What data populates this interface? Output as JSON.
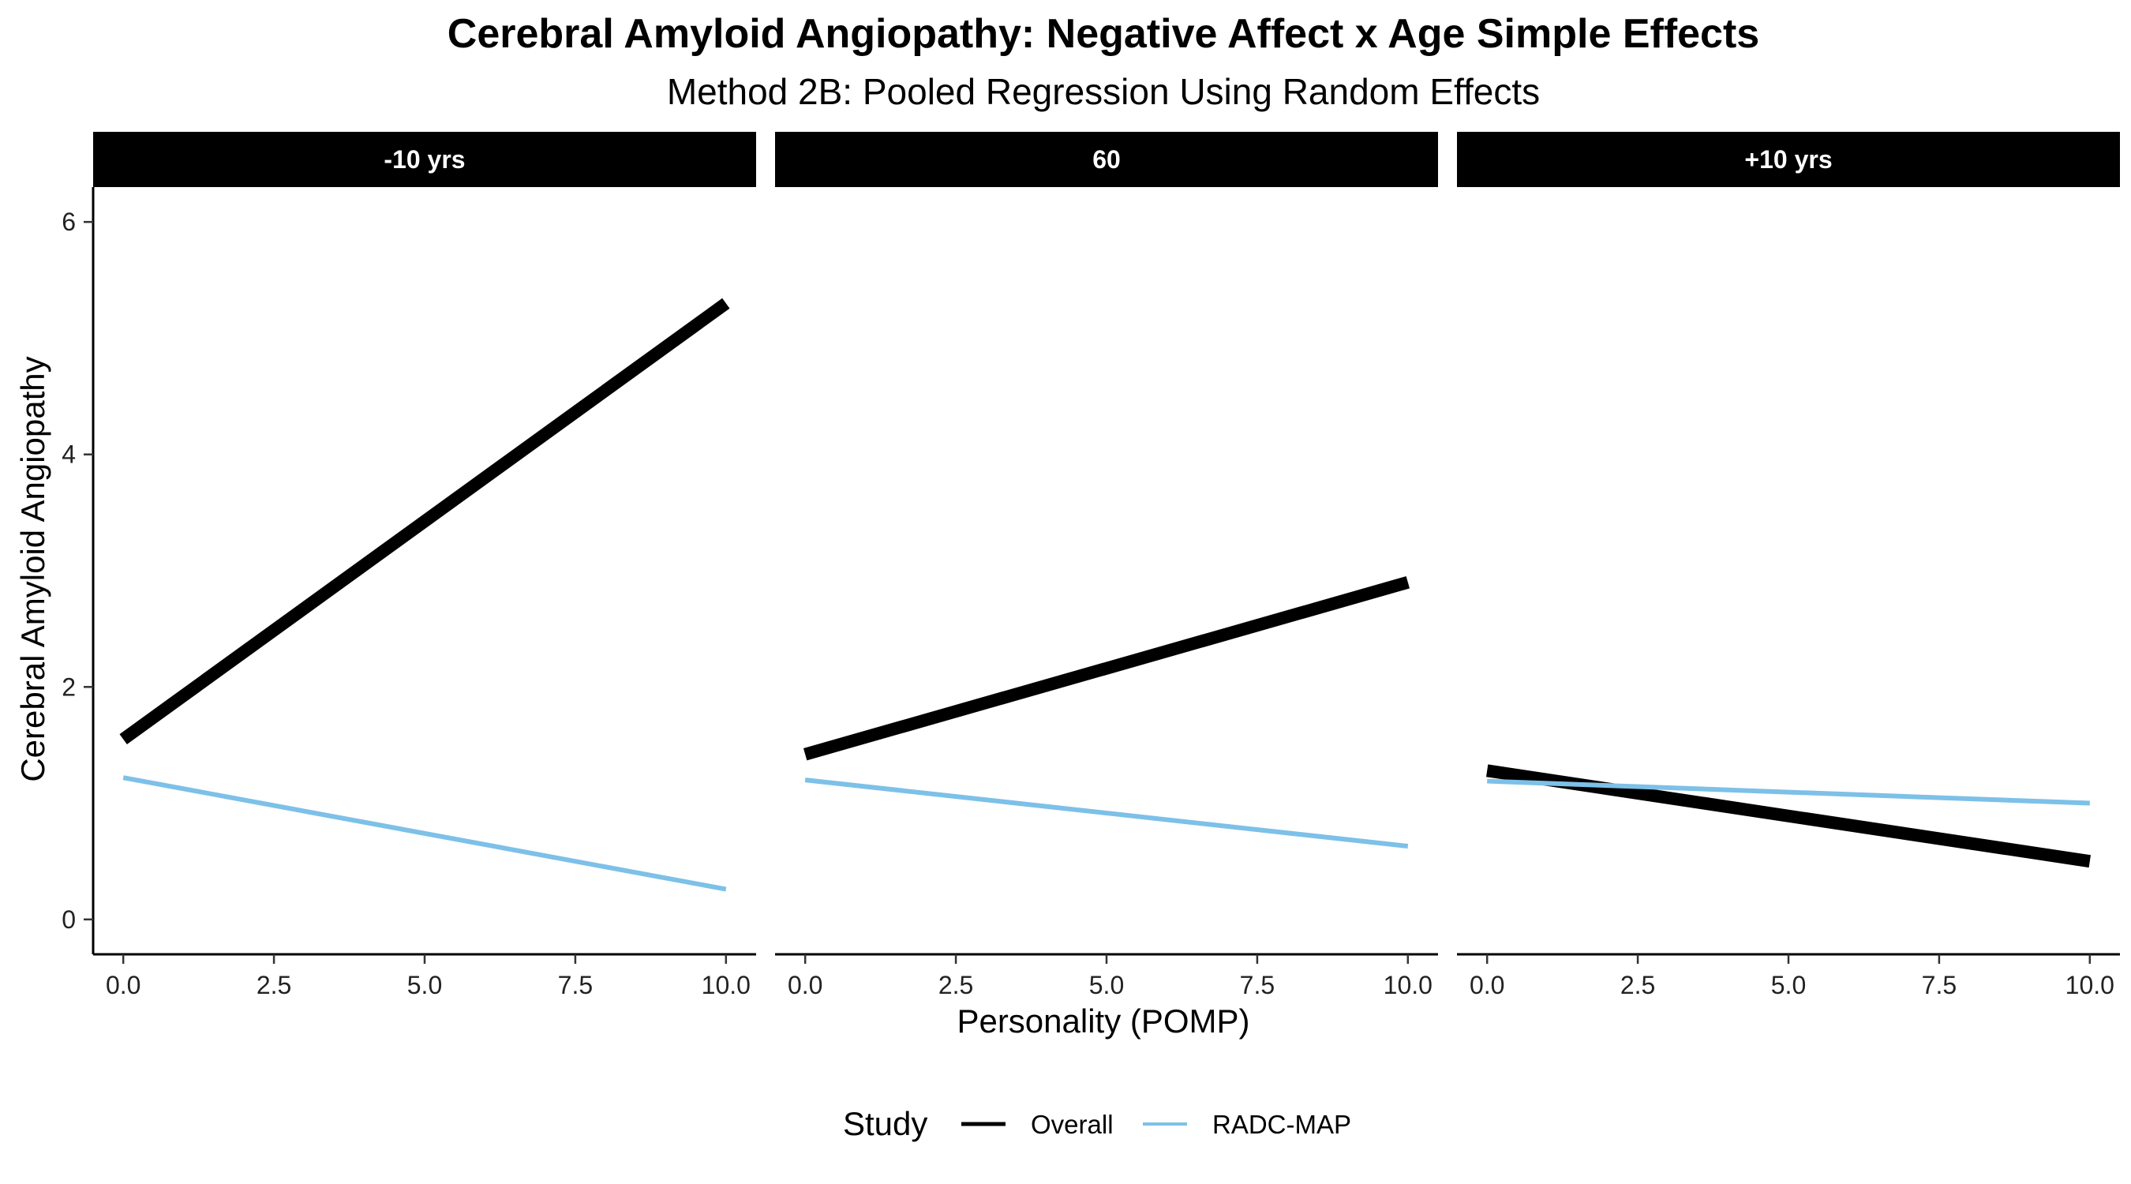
{
  "chart_data": {
    "type": "line",
    "title": "Cerebral Amyloid Angiopathy: Negative Affect x Age Simple Effects",
    "subtitle": "Method 2B: Pooled Regression Using Random Effects",
    "xlabel": "Personality (POMP)",
    "ylabel": "Cerebral Amyloid Angiopathy",
    "xlim": [
      -0.5,
      10.5
    ],
    "ylim": [
      -0.3,
      6.3
    ],
    "x_ticks": [
      0,
      2.5,
      5,
      7.5,
      10
    ],
    "x_tick_labels": [
      "0.0",
      "2.5",
      "5.0",
      "7.5",
      "10.0"
    ],
    "y_ticks": [
      0,
      2,
      4,
      6
    ],
    "y_tick_labels": [
      "0",
      "2",
      "4",
      "6"
    ],
    "grid": false,
    "legend": {
      "title": "Study",
      "position": "bottom",
      "entries": [
        {
          "label": "Overall",
          "color": "#000000"
        },
        {
          "label": "RADC-MAP",
          "color": "#7dc0e8"
        }
      ]
    },
    "facets": [
      {
        "label": "-10 yrs",
        "series": [
          {
            "name": "Overall",
            "x": [
              0,
              10
            ],
            "y": [
              1.55,
              5.3
            ]
          },
          {
            "name": "RADC-MAP",
            "x": [
              0,
              10
            ],
            "y": [
              1.22,
              0.26
            ]
          }
        ]
      },
      {
        "label": "60",
        "series": [
          {
            "name": "Overall",
            "x": [
              0,
              10
            ],
            "y": [
              1.42,
              2.9
            ]
          },
          {
            "name": "RADC-MAP",
            "x": [
              0,
              10
            ],
            "y": [
              1.2,
              0.63
            ]
          }
        ]
      },
      {
        "label": "+10 yrs",
        "series": [
          {
            "name": "Overall",
            "x": [
              0,
              10
            ],
            "y": [
              1.28,
              0.5
            ]
          },
          {
            "name": "RADC-MAP",
            "x": [
              0,
              10
            ],
            "y": [
              1.19,
              1.0
            ]
          }
        ]
      }
    ]
  }
}
